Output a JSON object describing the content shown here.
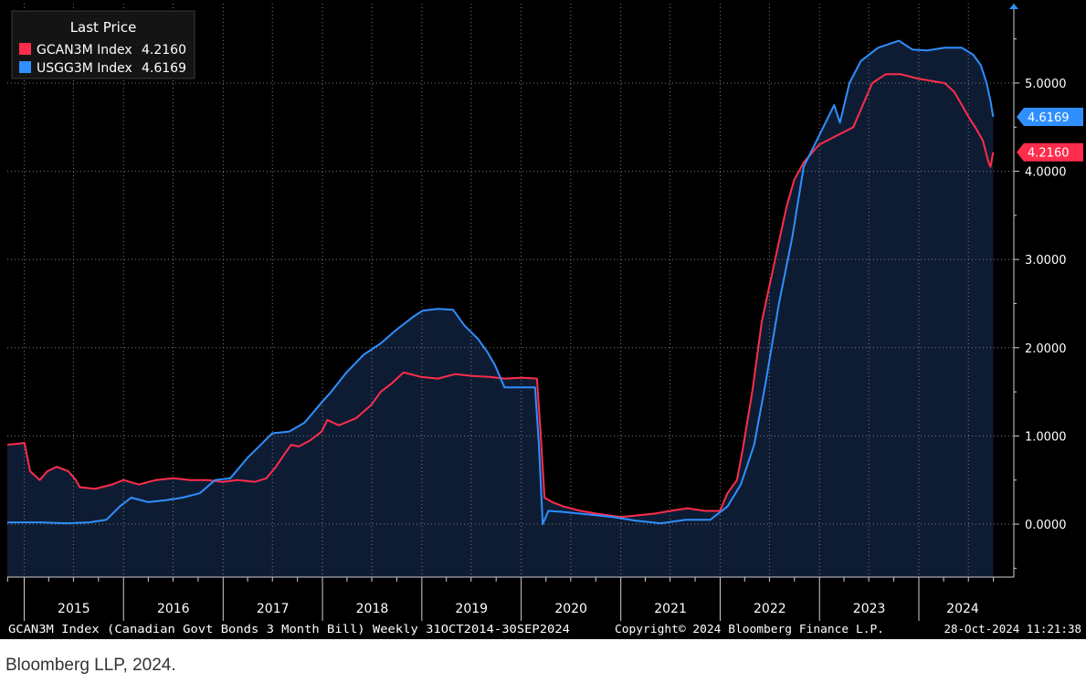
{
  "caption": "Bloomberg LLP, 2024.",
  "chart_data": {
    "type": "area",
    "legend": {
      "title": "Last Price",
      "placement": "top-left",
      "items": [
        {
          "label": "GCAN3M Index",
          "value": "4.2160",
          "color": "#ff2d4b"
        },
        {
          "label": "USGG3M Index",
          "value": "4.6169",
          "color": "#2f8fff"
        }
      ]
    },
    "footer": {
      "left": "GCAN3M Index (Canadian Govt Bonds 3 Month Bill)  Weekly 31OCT2014-30SEP2024",
      "center": "Copyright© 2024 Bloomberg Finance L.P.",
      "right": "28-Oct-2024 11:21:38"
    },
    "x_tick_labels": [
      "2015",
      "2016",
      "2017",
      "2018",
      "2019",
      "2020",
      "2021",
      "2022",
      "2023",
      "2024"
    ],
    "y_tick_labels": [
      "0.0000",
      "1.0000",
      "2.0000",
      "3.0000",
      "4.0000",
      "5.0000"
    ],
    "y_ticks": [
      0,
      1,
      2,
      3,
      4,
      5
    ],
    "xlim": [
      "2014-10-31",
      "2024-12-15"
    ],
    "ylim": [
      -0.6,
      5.9
    ],
    "grid": true,
    "last_value_labels": [
      {
        "text": "4.6169",
        "value": 4.6169,
        "color": "#2f8fff"
      },
      {
        "text": "4.2160",
        "value": 4.216,
        "color": "#ff2d4b"
      }
    ],
    "series": [
      {
        "name": "GCAN3M Index",
        "color": "#ff2d4b",
        "fill": "#0e1c33",
        "points": [
          [
            "2014-10-31",
            0.9
          ],
          [
            "2015-01-02",
            0.92
          ],
          [
            "2015-01-23",
            0.6
          ],
          [
            "2015-02-27",
            0.5
          ],
          [
            "2015-03-27",
            0.6
          ],
          [
            "2015-05-01",
            0.65
          ],
          [
            "2015-06-12",
            0.6
          ],
          [
            "2015-07-10",
            0.5
          ],
          [
            "2015-07-24",
            0.42
          ],
          [
            "2015-09-18",
            0.4
          ],
          [
            "2015-11-20",
            0.45
          ],
          [
            "2016-01-01",
            0.5
          ],
          [
            "2016-02-26",
            0.45
          ],
          [
            "2016-04-29",
            0.5
          ],
          [
            "2016-07-01",
            0.52
          ],
          [
            "2016-09-02",
            0.5
          ],
          [
            "2016-11-04",
            0.5
          ],
          [
            "2016-12-30",
            0.48
          ],
          [
            "2017-02-24",
            0.5
          ],
          [
            "2017-04-28",
            0.48
          ],
          [
            "2017-06-09",
            0.52
          ],
          [
            "2017-07-14",
            0.65
          ],
          [
            "2017-08-11",
            0.78
          ],
          [
            "2017-09-08",
            0.9
          ],
          [
            "2017-10-06",
            0.88
          ],
          [
            "2017-11-17",
            0.95
          ],
          [
            "2017-12-29",
            1.05
          ],
          [
            "2018-01-19",
            1.18
          ],
          [
            "2018-03-02",
            1.12
          ],
          [
            "2018-05-04",
            1.2
          ],
          [
            "2018-06-29",
            1.35
          ],
          [
            "2018-08-03",
            1.5
          ],
          [
            "2018-09-14",
            1.6
          ],
          [
            "2018-10-26",
            1.72
          ],
          [
            "2018-12-28",
            1.67
          ],
          [
            "2019-03-01",
            1.65
          ],
          [
            "2019-05-03",
            1.7
          ],
          [
            "2019-07-05",
            1.68
          ],
          [
            "2019-09-06",
            1.67
          ],
          [
            "2019-11-01",
            1.65
          ],
          [
            "2020-01-03",
            1.66
          ],
          [
            "2020-02-28",
            1.65
          ],
          [
            "2020-03-13",
            1.0
          ],
          [
            "2020-03-27",
            0.3
          ],
          [
            "2020-04-24",
            0.25
          ],
          [
            "2020-06-05",
            0.2
          ],
          [
            "2020-08-07",
            0.15
          ],
          [
            "2020-10-02",
            0.12
          ],
          [
            "2020-12-31",
            0.08
          ],
          [
            "2021-03-05",
            0.1
          ],
          [
            "2021-05-07",
            0.12
          ],
          [
            "2021-07-02",
            0.15
          ],
          [
            "2021-09-03",
            0.18
          ],
          [
            "2021-11-05",
            0.15
          ],
          [
            "2021-12-31",
            0.15
          ],
          [
            "2022-01-28",
            0.35
          ],
          [
            "2022-03-04",
            0.5
          ],
          [
            "2022-03-25",
            0.85
          ],
          [
            "2022-04-29",
            1.5
          ],
          [
            "2022-06-03",
            2.3
          ],
          [
            "2022-07-01",
            2.7
          ],
          [
            "2022-08-05",
            3.2
          ],
          [
            "2022-09-02",
            3.6
          ],
          [
            "2022-09-30",
            3.9
          ],
          [
            "2022-11-04",
            4.1
          ],
          [
            "2022-12-30",
            4.3
          ],
          [
            "2023-03-03",
            4.4
          ],
          [
            "2023-05-05",
            4.5
          ],
          [
            "2023-06-09",
            4.75
          ],
          [
            "2023-07-14",
            5.0
          ],
          [
            "2023-09-01",
            5.1
          ],
          [
            "2023-10-27",
            5.1
          ],
          [
            "2023-12-29",
            5.05
          ],
          [
            "2024-02-23",
            5.02
          ],
          [
            "2024-04-05",
            5.0
          ],
          [
            "2024-05-10",
            4.9
          ],
          [
            "2024-06-07",
            4.75
          ],
          [
            "2024-07-05",
            4.6
          ],
          [
            "2024-07-26",
            4.5
          ],
          [
            "2024-08-23",
            4.35
          ],
          [
            "2024-09-13",
            4.1
          ],
          [
            "2024-09-20",
            4.05
          ],
          [
            "2024-09-30",
            4.216
          ]
        ]
      },
      {
        "name": "USGG3M Index",
        "color": "#2f8fff",
        "fill": "#0e1c33",
        "points": [
          [
            "2014-10-31",
            0.02
          ],
          [
            "2015-03-06",
            0.02
          ],
          [
            "2015-06-05",
            0.01
          ],
          [
            "2015-08-28",
            0.02
          ],
          [
            "2015-10-30",
            0.05
          ],
          [
            "2015-12-18",
            0.2
          ],
          [
            "2016-01-29",
            0.3
          ],
          [
            "2016-04-01",
            0.25
          ],
          [
            "2016-06-03",
            0.27
          ],
          [
            "2016-08-05",
            0.3
          ],
          [
            "2016-10-07",
            0.35
          ],
          [
            "2016-12-02",
            0.5
          ],
          [
            "2017-01-27",
            0.52
          ],
          [
            "2017-03-31",
            0.75
          ],
          [
            "2017-05-26",
            0.92
          ],
          [
            "2017-06-30",
            1.03
          ],
          [
            "2017-09-01",
            1.05
          ],
          [
            "2017-10-27",
            1.15
          ],
          [
            "2017-12-29",
            1.38
          ],
          [
            "2018-02-02",
            1.5
          ],
          [
            "2018-03-30",
            1.72
          ],
          [
            "2018-06-01",
            1.92
          ],
          [
            "2018-08-03",
            2.05
          ],
          [
            "2018-09-28",
            2.2
          ],
          [
            "2018-11-30",
            2.35
          ],
          [
            "2019-01-04",
            2.42
          ],
          [
            "2019-03-01",
            2.44
          ],
          [
            "2019-04-26",
            2.43
          ],
          [
            "2019-06-07",
            2.25
          ],
          [
            "2019-07-26",
            2.1
          ],
          [
            "2019-08-30",
            1.95
          ],
          [
            "2019-09-27",
            1.8
          ],
          [
            "2019-11-01",
            1.55
          ],
          [
            "2019-12-27",
            1.55
          ],
          [
            "2020-02-21",
            1.55
          ],
          [
            "2020-03-06",
            0.9
          ],
          [
            "2020-03-20",
            0.0
          ],
          [
            "2020-04-10",
            0.15
          ],
          [
            "2020-05-29",
            0.14
          ],
          [
            "2020-09-04",
            0.11
          ],
          [
            "2020-12-04",
            0.08
          ],
          [
            "2021-02-26",
            0.04
          ],
          [
            "2021-05-28",
            0.01
          ],
          [
            "2021-08-27",
            0.05
          ],
          [
            "2021-11-26",
            0.05
          ],
          [
            "2022-01-28",
            0.2
          ],
          [
            "2022-03-18",
            0.45
          ],
          [
            "2022-05-06",
            0.9
          ],
          [
            "2022-06-17",
            1.6
          ],
          [
            "2022-08-05",
            2.5
          ],
          [
            "2022-09-23",
            3.25
          ],
          [
            "2022-11-04",
            4.05
          ],
          [
            "2022-12-30",
            4.4
          ],
          [
            "2023-02-24",
            4.75
          ],
          [
            "2023-03-17",
            4.55
          ],
          [
            "2023-04-21",
            5.0
          ],
          [
            "2023-06-02",
            5.25
          ],
          [
            "2023-08-04",
            5.4
          ],
          [
            "2023-10-20",
            5.48
          ],
          [
            "2023-12-08",
            5.38
          ],
          [
            "2024-02-02",
            5.37
          ],
          [
            "2024-04-05",
            5.4
          ],
          [
            "2024-06-07",
            5.4
          ],
          [
            "2024-07-19",
            5.32
          ],
          [
            "2024-08-16",
            5.2
          ],
          [
            "2024-09-06",
            5.0
          ],
          [
            "2024-09-20",
            4.8
          ],
          [
            "2024-09-30",
            4.6169
          ]
        ]
      }
    ]
  }
}
